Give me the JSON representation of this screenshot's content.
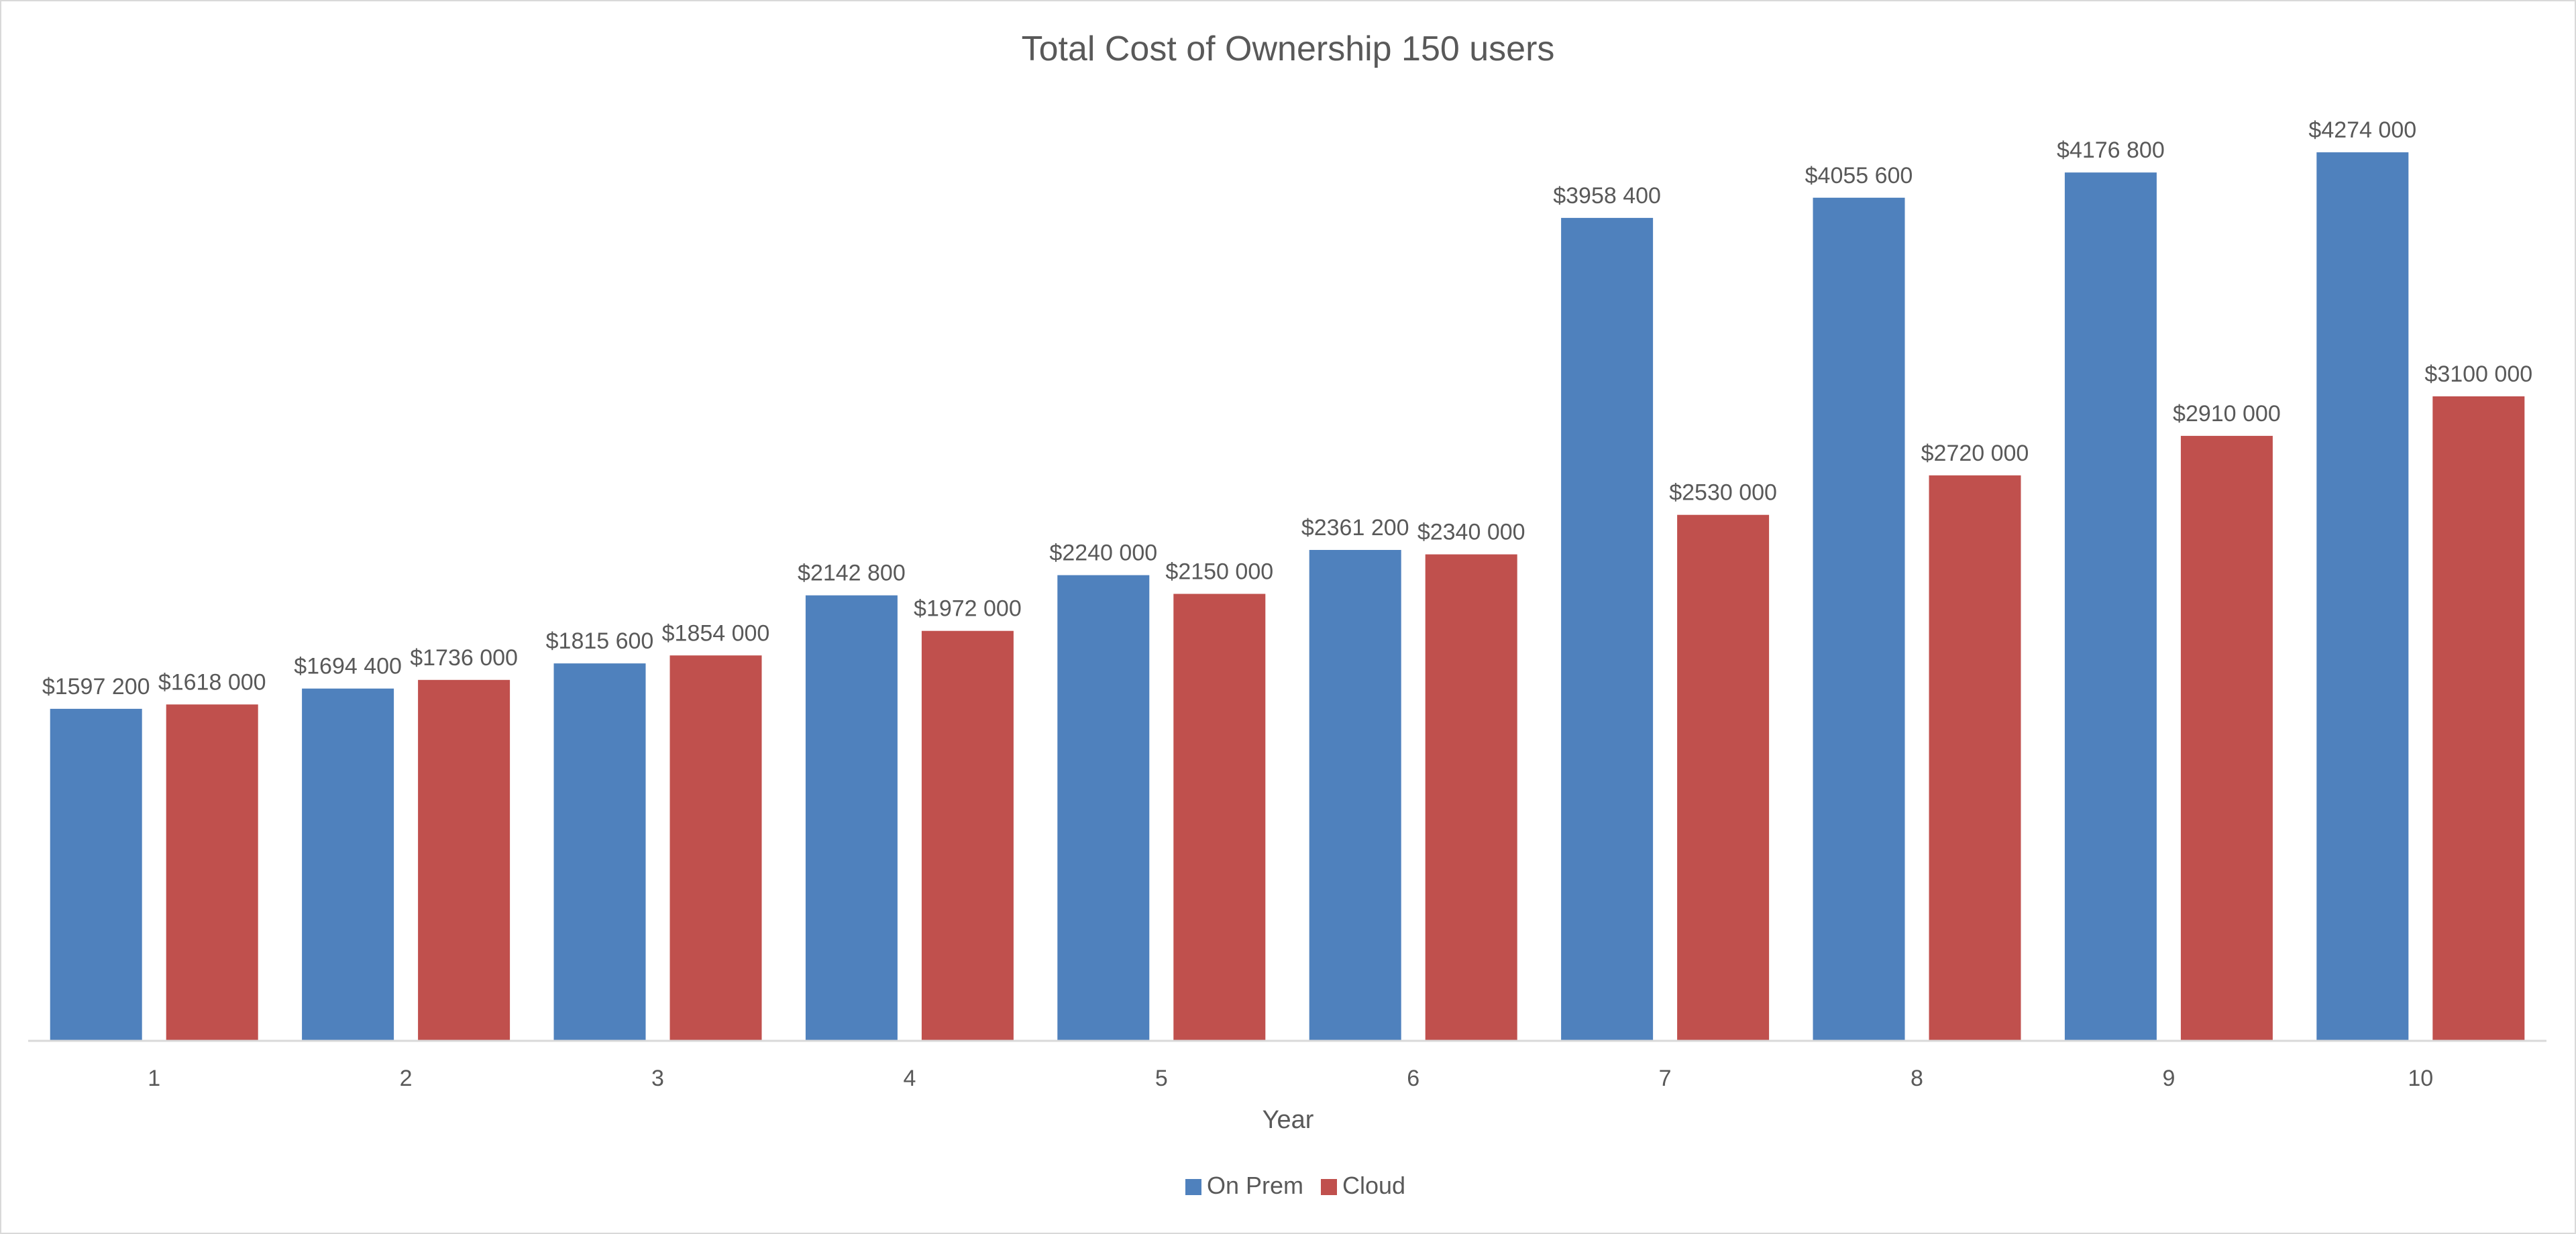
{
  "chart_data": {
    "type": "bar",
    "title": "Total Cost of Ownership 150 users",
    "xlabel": "Year",
    "ylabel": "",
    "categories": [
      "1",
      "2",
      "3",
      "4",
      "5",
      "6",
      "7",
      "8",
      "9",
      "10"
    ],
    "ylim": [
      0,
      4500000
    ],
    "grid": false,
    "legend_position": "bottom",
    "series": [
      {
        "name": "On Prem",
        "color": "#4f81bd",
        "values": [
          1597200,
          1694400,
          1815600,
          2142800,
          2240000,
          2361200,
          3958400,
          4055600,
          4176800,
          4274000
        ],
        "labels": [
          "$1597 200",
          "$1694 400",
          "$1815 600",
          "$2142 800",
          "$2240 000",
          "$2361 200",
          "$3958 400",
          "$4055 600",
          "$4176 800",
          "$4274 000"
        ]
      },
      {
        "name": "Cloud",
        "color": "#c0504d",
        "values": [
          1618000,
          1736000,
          1854000,
          1972000,
          2150000,
          2340000,
          2530000,
          2720000,
          2910000,
          3100000
        ],
        "labels": [
          "$1618 000",
          "$1736 000",
          "$1854 000",
          "$1972 000",
          "$2150 000",
          "$2340 000",
          "$2530 000",
          "$2720 000",
          "$2910 000",
          "$3100 000"
        ]
      }
    ],
    "axis_color": "#d9d9d9"
  }
}
